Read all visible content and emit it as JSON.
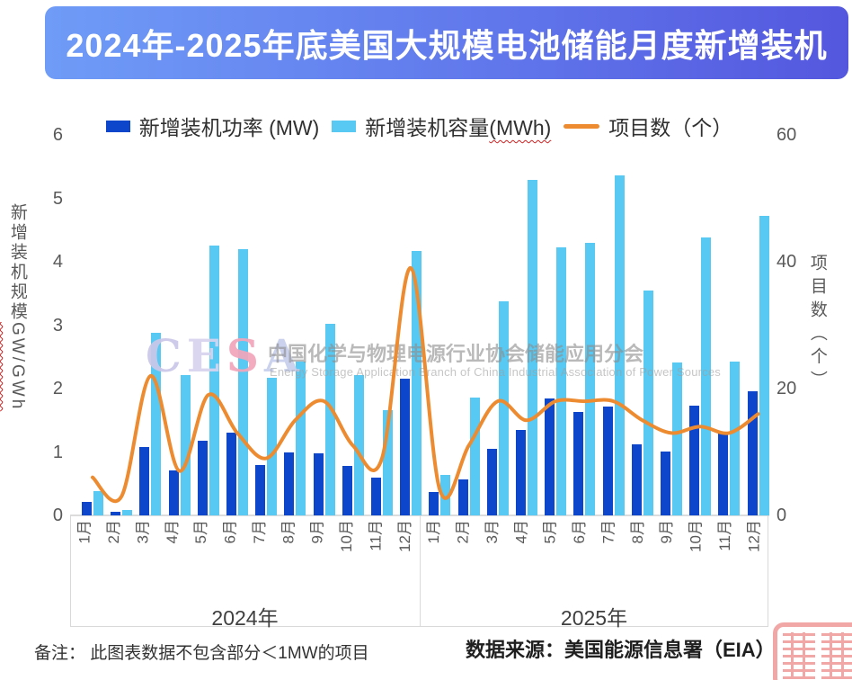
{
  "header": {
    "title": "2024年-2025年底美国大规模电池储能月度新增装机"
  },
  "legend": {
    "capacity_main": "新增装机容量",
    "capacity_suffix": "(MWh)"
  },
  "axes": {
    "left_title_main": "新增装机规模",
    "left_title_suffix": "GW/GWh",
    "right_title": "项目数（个）",
    "left_ticks": [
      0,
      1,
      2,
      3,
      4,
      5,
      6
    ],
    "right_ticks": [
      0,
      20,
      40,
      60
    ]
  },
  "watermark": {
    "cesa": "CESA",
    "cesa_colors": [
      "#c9c7e8",
      "#d8d3ee",
      "#f2a6ba",
      "#c7cfec"
    ],
    "cn": "中国化学与物理电源行业协会储能应用分会",
    "en": "Energy Storage Application Branch of China Industrial Association of Power Sources"
  },
  "footer": {
    "note": "备注： 此图表数据不包含部分＜1MW的项目",
    "source": "数据来源：美国能源信息署（EIA）"
  },
  "chart_data": {
    "type": "bar",
    "subtype": "combo-bar-line-dual-axis",
    "title": "2024年-2025年底美国大规模电池储能月度新增装机",
    "categories": [
      "1月",
      "2月",
      "3月",
      "4月",
      "5月",
      "6月",
      "7月",
      "8月",
      "9月",
      "10月",
      "11月",
      "12月",
      "1月",
      "2月",
      "3月",
      "4月",
      "5月",
      "6月",
      "7月",
      "8月",
      "9月",
      "10月",
      "11月",
      "12月"
    ],
    "category_groups": [
      {
        "label": "2024年",
        "count": 12
      },
      {
        "label": "2025年",
        "count": 12
      }
    ],
    "series": [
      {
        "name": "新增装机功率 (MW)",
        "type": "bar",
        "axis": "left",
        "color": "#0d45cb",
        "values": [
          0.21,
          0.06,
          1.08,
          0.71,
          1.18,
          1.3,
          0.79,
          1.0,
          0.98,
          0.78,
          0.6,
          2.16,
          0.37,
          0.57,
          1.05,
          1.35,
          1.84,
          1.63,
          1.72,
          1.12,
          1.01,
          1.73,
          1.32,
          1.96
        ]
      },
      {
        "name": "新增装机容量(MWh)",
        "type": "bar",
        "axis": "left",
        "color": "#57c9f2",
        "values": [
          0.38,
          0.08,
          2.88,
          2.22,
          4.25,
          4.2,
          2.17,
          2.42,
          3.02,
          2.22,
          1.66,
          4.17,
          0.64,
          1.86,
          3.38,
          5.29,
          4.23,
          4.3,
          5.36,
          3.55,
          2.41,
          4.39,
          2.42,
          4.73
        ]
      },
      {
        "name": "项目数（个）",
        "type": "line",
        "axis": "right",
        "color": "#ed8b30",
        "values": [
          6,
          3,
          22,
          7,
          19,
          13,
          9,
          15,
          18,
          11,
          9,
          39,
          4,
          11,
          18,
          15,
          18,
          18,
          18,
          15,
          13,
          14,
          13,
          16
        ]
      }
    ],
    "left_axis": {
      "title": "新增装机规模GW/GWh",
      "min": 0,
      "max": 6,
      "step": 1,
      "grid": false
    },
    "right_axis": {
      "title": "项目数（个）",
      "min": 0,
      "max": 60,
      "step": 20,
      "grid": false
    },
    "legend_position": "top"
  }
}
